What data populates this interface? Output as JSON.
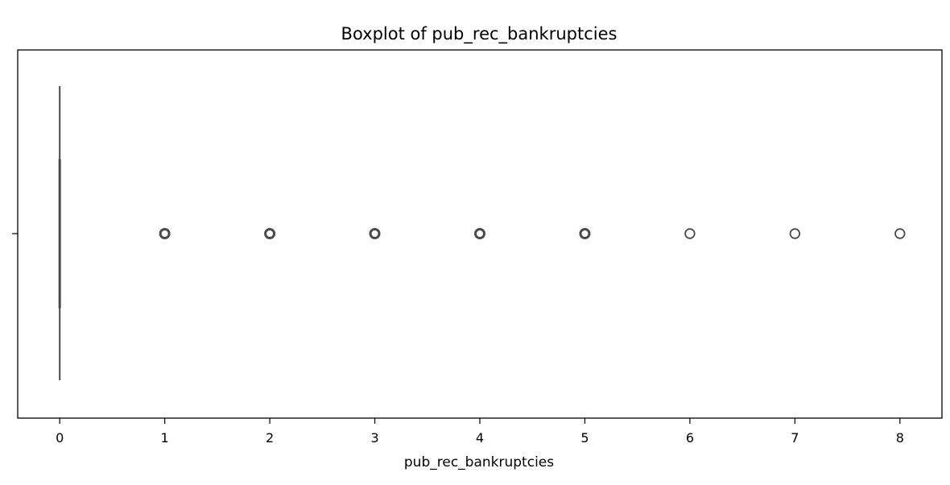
{
  "chart_data": {
    "type": "boxplot",
    "orientation": "horizontal",
    "title": "Boxplot of pub_rec_bankruptcies",
    "xlabel": "pub_rec_bankruptcies",
    "ylabel": "",
    "xlim": [
      -0.4,
      8.4
    ],
    "xticks": [
      0,
      1,
      2,
      3,
      4,
      5,
      6,
      7,
      8
    ],
    "grid": false,
    "box": {
      "min": 0,
      "q1": 0,
      "median": 0,
      "q3": 0,
      "max": 0,
      "outliers": [
        1,
        2,
        3,
        4,
        5,
        6,
        7,
        8
      ]
    },
    "colors": {
      "box_line": "#4a4a4a",
      "outlier_edge": "#4a4a4a"
    }
  }
}
